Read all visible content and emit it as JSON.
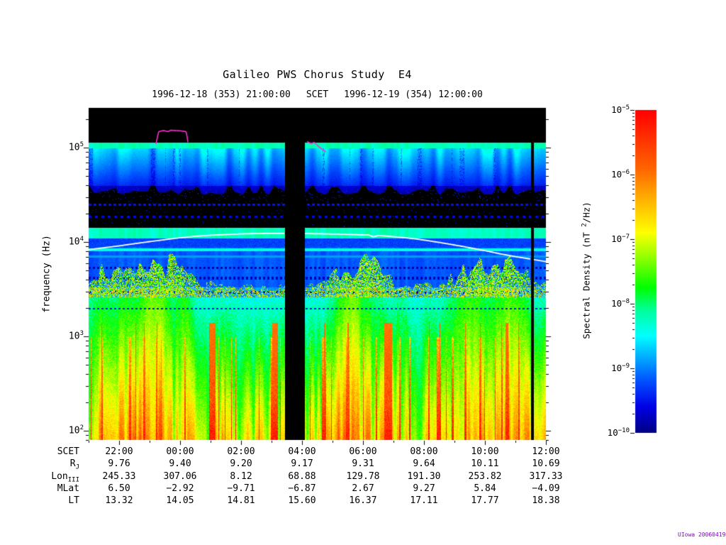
{
  "title": "Galileo PWS Chorus Study  E4",
  "subtitle": {
    "start": "1996-12-18 (353) 21:00:00",
    "label": "SCET",
    "end": "1996-12-19 (354) 12:00:00"
  },
  "y_axis": {
    "label": "frequency (Hz)",
    "ticks": [
      {
        "base": "10",
        "exp": "2"
      },
      {
        "base": "10",
        "exp": "3"
      },
      {
        "base": "10",
        "exp": "4"
      },
      {
        "base": "10",
        "exp": "5"
      }
    ]
  },
  "colorbar": {
    "label_pre": "Spectral Density (nT ",
    "label_sup": "2",
    "label_post": "/Hz)",
    "ticks": [
      {
        "base": "10",
        "exp": "−5"
      },
      {
        "base": "10",
        "exp": "−6"
      },
      {
        "base": "10",
        "exp": "−7"
      },
      {
        "base": "10",
        "exp": "−8"
      },
      {
        "base": "10",
        "exp": "−9"
      },
      {
        "base": "10",
        "exp": "−10"
      }
    ],
    "stops": [
      [
        0,
        "#000082"
      ],
      [
        0.08,
        "#0000e6"
      ],
      [
        0.16,
        "#0050ff"
      ],
      [
        0.24,
        "#00b4ff"
      ],
      [
        0.3,
        "#00ffff"
      ],
      [
        0.38,
        "#00ff9b"
      ],
      [
        0.45,
        "#00ff00"
      ],
      [
        0.55,
        "#9bff00"
      ],
      [
        0.62,
        "#ffff00"
      ],
      [
        0.72,
        "#ffb400"
      ],
      [
        0.82,
        "#ff6400"
      ],
      [
        1,
        "#ff0000"
      ]
    ]
  },
  "ephemeris_table": {
    "rows": [
      {
        "label": "SCET",
        "sub": "",
        "values": [
          "22:00",
          "00:00",
          "02:00",
          "04:00",
          "06:00",
          "08:00",
          "10:00",
          "12:00"
        ]
      },
      {
        "label": "R",
        "sub": "J",
        "values": [
          "9.76",
          "9.40",
          "9.20",
          "9.17",
          "9.31",
          "9.64",
          "10.11",
          "10.69"
        ]
      },
      {
        "label": "Lon",
        "sub": "III",
        "values": [
          "245.33",
          "307.06",
          "8.12",
          "68.88",
          "129.78",
          "191.30",
          "253.82",
          "317.33"
        ]
      },
      {
        "label": "MLat",
        "sub": "",
        "values": [
          "6.50",
          "−2.92",
          "−9.71",
          "−6.87",
          "2.67",
          "9.27",
          "5.84",
          "−4.09"
        ]
      },
      {
        "label": "LT",
        "sub": "",
        "values": [
          "13.32",
          "14.05",
          "14.81",
          "15.60",
          "16.37",
          "17.11",
          "17.77",
          "18.38"
        ]
      }
    ]
  },
  "credit": "UIowa 20060419",
  "chart_data": {
    "type": "heatmap",
    "title": "Galileo PWS Chorus Study E4",
    "x_axis": {
      "label": "SCET",
      "start": "1996-12-18 (353) 21:00:00",
      "end": "1996-12-19 (354) 12:00:00",
      "tick_labels": [
        "22:00",
        "00:00",
        "02:00",
        "04:00",
        "06:00",
        "08:00",
        "10:00",
        "12:00"
      ],
      "tick_hours_from_start": [
        1,
        3,
        5,
        7,
        9,
        11,
        13,
        15
      ]
    },
    "y_axis": {
      "label": "frequency (Hz)",
      "scale": "log",
      "min_hz": 80,
      "max_hz": 260000,
      "tick_labels": [
        "10^2",
        "10^3",
        "10^4",
        "10^5"
      ]
    },
    "color_axis": {
      "label": "Spectral Density (nT^2/Hz)",
      "scale": "log",
      "min": 1e-10,
      "max": 1e-05,
      "tick_labels": [
        "10^-5",
        "10^-6",
        "10^-7",
        "10^-8",
        "10^-9",
        "10^-10"
      ]
    },
    "ephemeris": {
      "SCET": [
        "22:00",
        "00:00",
        "02:00",
        "04:00",
        "06:00",
        "08:00",
        "10:00",
        "12:00"
      ],
      "R_J": [
        9.76,
        9.4,
        9.2,
        9.17,
        9.31,
        9.64,
        10.11,
        10.69
      ],
      "Lon_III": [
        245.33,
        307.06,
        8.12,
        68.88,
        129.78,
        191.3,
        253.82,
        317.33
      ],
      "MLat": [
        6.5,
        -2.92,
        -9.71,
        -6.87,
        2.67,
        9.27,
        5.84,
        -4.09
      ],
      "LT": [
        13.32,
        14.05,
        14.81,
        15.6,
        16.37,
        17.11,
        17.77,
        18.38
      ]
    },
    "features": {
      "data_gaps_hours": [
        [
          6.44,
          7.09
        ],
        [
          14.49,
          14.6
        ]
      ],
      "fce_half_line_khz": [
        [
          0,
          8.3
        ],
        [
          0.5,
          8.7
        ],
        [
          1,
          9.1
        ],
        [
          1.5,
          9.6
        ],
        [
          2,
          10.1
        ],
        [
          2.5,
          10.6
        ],
        [
          3,
          11.1
        ],
        [
          3.5,
          11.5
        ],
        [
          4,
          11.8
        ],
        [
          4.5,
          12.0
        ],
        [
          5,
          12.2
        ],
        [
          5.5,
          12.3
        ],
        [
          6,
          12.35
        ],
        [
          6.44,
          12.35
        ],
        [
          7.09,
          12.3
        ],
        [
          7.5,
          12.25
        ],
        [
          8,
          12.15
        ],
        [
          8.5,
          12.05
        ],
        [
          9,
          11.9
        ],
        [
          9.2,
          11.85
        ],
        [
          9.35,
          11.35
        ],
        [
          9.5,
          11.75
        ],
        [
          10,
          11.4
        ],
        [
          10.5,
          11.0
        ],
        [
          11,
          10.5
        ],
        [
          11.5,
          9.9
        ],
        [
          12,
          9.3
        ],
        [
          12.5,
          8.7
        ],
        [
          13,
          8.1
        ],
        [
          13.5,
          7.5
        ],
        [
          14,
          7.0
        ],
        [
          14.5,
          6.6
        ],
        [
          15,
          6.2
        ]
      ],
      "uh_line_segments_khz": [
        [
          [
            2.2,
            105
          ],
          [
            2.3,
            148
          ],
          [
            2.45,
            152
          ],
          [
            2.6,
            148
          ],
          [
            2.7,
            153
          ],
          [
            3.0,
            151
          ],
          [
            3.2,
            148
          ],
          [
            3.27,
            106
          ]
        ],
        [
          [
            7.15,
            117
          ],
          [
            7.3,
            110
          ],
          [
            7.4,
            114
          ],
          [
            7.55,
            102
          ],
          [
            7.7,
            94
          ],
          [
            7.8,
            90
          ]
        ]
      ],
      "activity_baseline": 0.28,
      "activity_peaks": [
        [
          0.4,
          0.8,
          0.5
        ],
        [
          2.4,
          1.0,
          0.75
        ],
        [
          8.8,
          1.0,
          0.8
        ],
        [
          13.2,
          1.2,
          0.85
        ]
      ],
      "red_burst_hours": [
        [
          3.95,
          4.15
        ],
        [
          6.02,
          6.2
        ],
        [
          9.68,
          9.95
        ]
      ],
      "bands": [
        {
          "freq_hz": [
            100000,
            115000
          ],
          "desc": "bright light-blue edge at ~1e5 Hz"
        },
        {
          "freq_hz": [
            40000,
            100000
          ],
          "desc": "medium blue streaked band"
        },
        {
          "freq_hz": [
            14000,
            40000
          ],
          "desc": "near-black zone with dotted blue rows"
        },
        {
          "freq_hz": [
            11000,
            14000
          ],
          "desc": "bright cyan band above white fce/2 line"
        },
        {
          "freq_hz": [
            3300,
            9000
          ],
          "desc": "dark banded blue rows with dotted gaps"
        },
        {
          "freq_hz": [
            100,
            3000
          ],
          "desc": "intense chorus: green/yellow/red vertical streaks"
        }
      ]
    }
  }
}
